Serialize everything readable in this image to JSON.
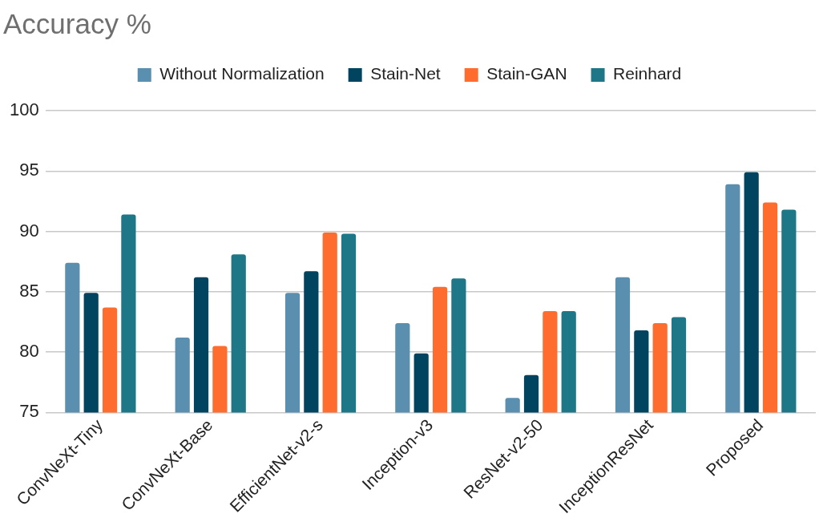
{
  "chart_data": {
    "type": "bar",
    "title": "Accuracy %",
    "categories": [
      "ConvNeXt-Tiny",
      "ConvNeXt-Base",
      "EfficientNet-v2-s",
      "Inception-v3",
      "ResNet-v2-50",
      "InceptionResNet",
      "Proposed"
    ],
    "series": [
      {
        "name": "Without Normalization",
        "color": "#5b8fb0",
        "values": [
          87.4,
          81.2,
          84.9,
          82.4,
          76.2,
          86.2,
          93.9
        ]
      },
      {
        "name": "Stain-Net",
        "color": "#01445f",
        "values": [
          84.9,
          86.2,
          86.7,
          79.9,
          78.1,
          81.8,
          94.9
        ]
      },
      {
        "name": "Stain-GAN",
        "color": "#ff6d2e",
        "values": [
          83.7,
          80.5,
          89.9,
          85.4,
          83.4,
          82.4,
          92.4
        ]
      },
      {
        "name": "Reinhard",
        "color": "#1e7787",
        "values": [
          91.4,
          88.1,
          89.8,
          86.1,
          83.4,
          82.9,
          91.8
        ]
      }
    ],
    "ylim": [
      75,
      100
    ],
    "yticks": [
      75,
      80,
      85,
      90,
      95,
      100
    ],
    "grid": "y",
    "legend": "top"
  }
}
